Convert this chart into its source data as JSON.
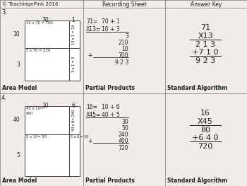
{
  "bg_color": "#f0ede8",
  "title_left": "© TeachingnPink 2016",
  "title_mid": "Recording Sheet",
  "title_right": "Answer Key",
  "p3_number": "3.",
  "p3_col1": "70",
  "p3_col2": "1",
  "p3_row1": "10",
  "p3_row2": "3",
  "p3_cell_tl": "10 x 70 = 700",
  "p3_cell_tr_rot": "10 x 1 = 10",
  "p3_cell_bl": "3 x 70 = 210",
  "p3_cell_br_rot": "3 x 1 = 3",
  "p3_pp1": "71=",
  "p3_pp1b": "70 + 1",
  "p3_pp2": "X13=",
  "p3_pp2b": "10 + 3",
  "p3_pp_nums": [
    "3",
    "210",
    "10",
    "700"
  ],
  "p3_pp_total": "9 2 3",
  "p3_std": [
    "71",
    "X13",
    "2 1 3",
    "+7 1 0",
    "9 2 3"
  ],
  "p3_label_area": "Area Model",
  "p3_label_pp": "Partial Products",
  "p3_label_std": "Standard Algorithm",
  "p4_number": "4.",
  "p4_col1": "10",
  "p4_col2": "6",
  "p4_row1": "40",
  "p4_row2": "5",
  "p4_cell_tl1": "40 x 10=",
  "p4_cell_tl2": "400",
  "p4_cell_tr_rot": "40 x 6= 240",
  "p4_cell_bl": "5 x 10= 50",
  "p4_cell_br": "5 x 6 = 30",
  "p4_pp1": "16=",
  "p4_pp1b": "10 + 6",
  "p4_pp2": "X45=",
  "p4_pp2b": "40 + 5",
  "p4_pp_nums": [
    "30",
    "50",
    "240",
    "400"
  ],
  "p4_pp_total": "720",
  "p4_std": [
    "16",
    "X45",
    "80",
    "+6 4 0",
    "720"
  ],
  "p4_label_area": "Area Model",
  "p4_label_pp": "Partial Products",
  "p4_label_std": "Standard Algorithm"
}
